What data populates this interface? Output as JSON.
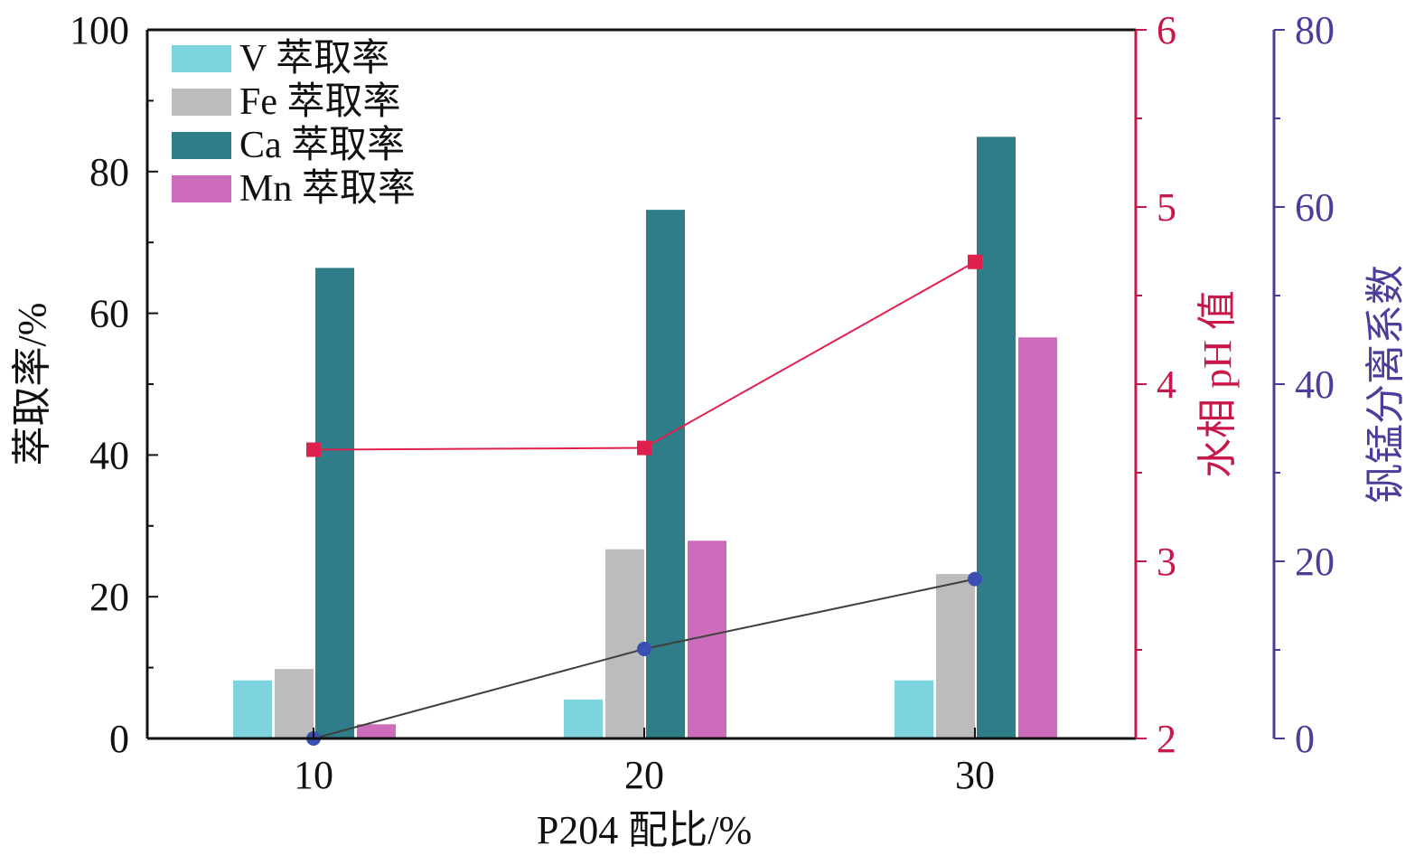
{
  "chart_data": {
    "type": "bar",
    "title": "",
    "xlabel": "P204 配比/%",
    "ylabel": "萃取率/%",
    "y2label": "水相 pH 值",
    "y3label": "钒锰分离系数",
    "categories": [
      "10",
      "20",
      "30"
    ],
    "ylim": [
      0,
      100
    ],
    "y2lim": [
      2,
      6
    ],
    "y3lim": [
      0,
      80
    ],
    "yticks": [
      0,
      20,
      40,
      60,
      80,
      100
    ],
    "y2ticks": [
      2,
      3,
      4,
      5,
      6
    ],
    "y3ticks": [
      0,
      20,
      40,
      60,
      80
    ],
    "legend_position": "top-left",
    "series": [
      {
        "name": "V 萃取率",
        "type": "bar",
        "color": "#7dd3de",
        "values": [
          8.2,
          5.5,
          8.2
        ]
      },
      {
        "name": "Fe 萃取率",
        "type": "bar",
        "color": "#bcbcbc",
        "values": [
          9.8,
          26.7,
          23.2
        ]
      },
      {
        "name": "Ca 萃取率",
        "type": "bar",
        "color": "#2e7d88",
        "values": [
          66.4,
          74.6,
          84.9
        ]
      },
      {
        "name": "Mn 萃取率",
        "type": "bar",
        "color": "#cc6cbb",
        "values": [
          2.0,
          27.9,
          56.6
        ]
      },
      {
        "name": "水相 pH 值",
        "type": "line",
        "axis": "y2",
        "color": "#e0204c",
        "marker_color": "#e0204c",
        "values": [
          3.63,
          3.64,
          4.69
        ]
      },
      {
        "name": "钒锰分离系数",
        "type": "line",
        "axis": "y3",
        "color": "#404040",
        "marker_color": "#3b4fb3",
        "values": [
          0,
          10.1,
          18.0
        ]
      }
    ],
    "colors": {
      "y2_axis": "#c8184a",
      "y3_axis": "#4b3d9a",
      "axis": "#111111"
    }
  }
}
